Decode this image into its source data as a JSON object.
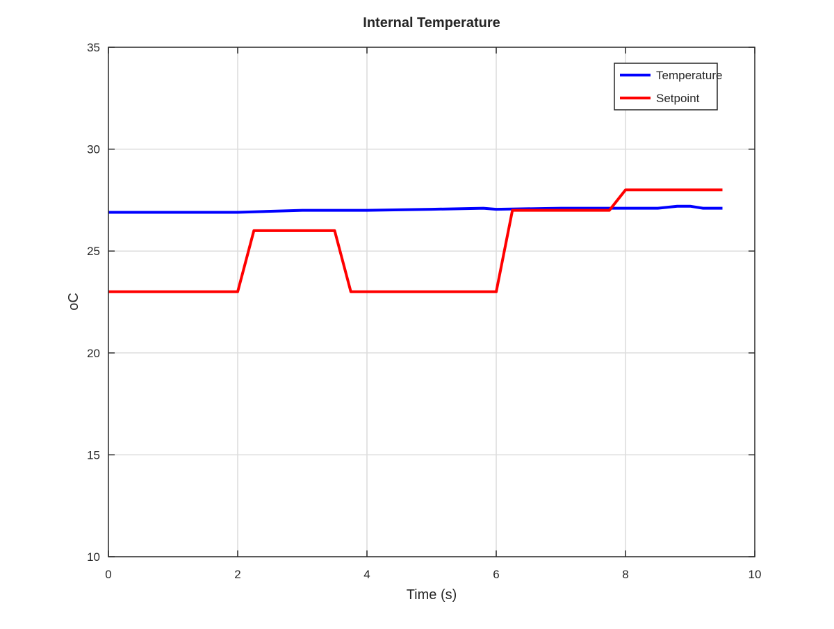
{
  "chart_data": {
    "type": "line",
    "title": "Internal Temperature",
    "xlabel": "Time (s)",
    "ylabel": "oC",
    "xlim": [
      0,
      10
    ],
    "ylim": [
      10,
      35
    ],
    "x_ticks": [
      0,
      2,
      4,
      6,
      8,
      10
    ],
    "y_ticks": [
      10,
      15,
      20,
      25,
      30,
      35
    ],
    "grid": true,
    "legend_position": "top-right",
    "series": [
      {
        "name": "Temperature",
        "color": "#0000ff",
        "x": [
          0,
          1,
          2,
          3,
          4,
          5,
          5.8,
          6,
          7,
          8,
          8.5,
          8.8,
          9.0,
          9.2,
          9.5
        ],
        "y": [
          26.9,
          26.9,
          26.9,
          27.0,
          27.0,
          27.05,
          27.1,
          27.05,
          27.1,
          27.1,
          27.1,
          27.2,
          27.2,
          27.1,
          27.1
        ]
      },
      {
        "name": "Setpoint",
        "color": "#ff0000",
        "x": [
          0,
          2,
          2.25,
          3.5,
          3.75,
          6,
          6.25,
          7.75,
          8,
          9.5
        ],
        "y": [
          23,
          23,
          26,
          26,
          23,
          23,
          27,
          27,
          28,
          28
        ]
      }
    ]
  }
}
